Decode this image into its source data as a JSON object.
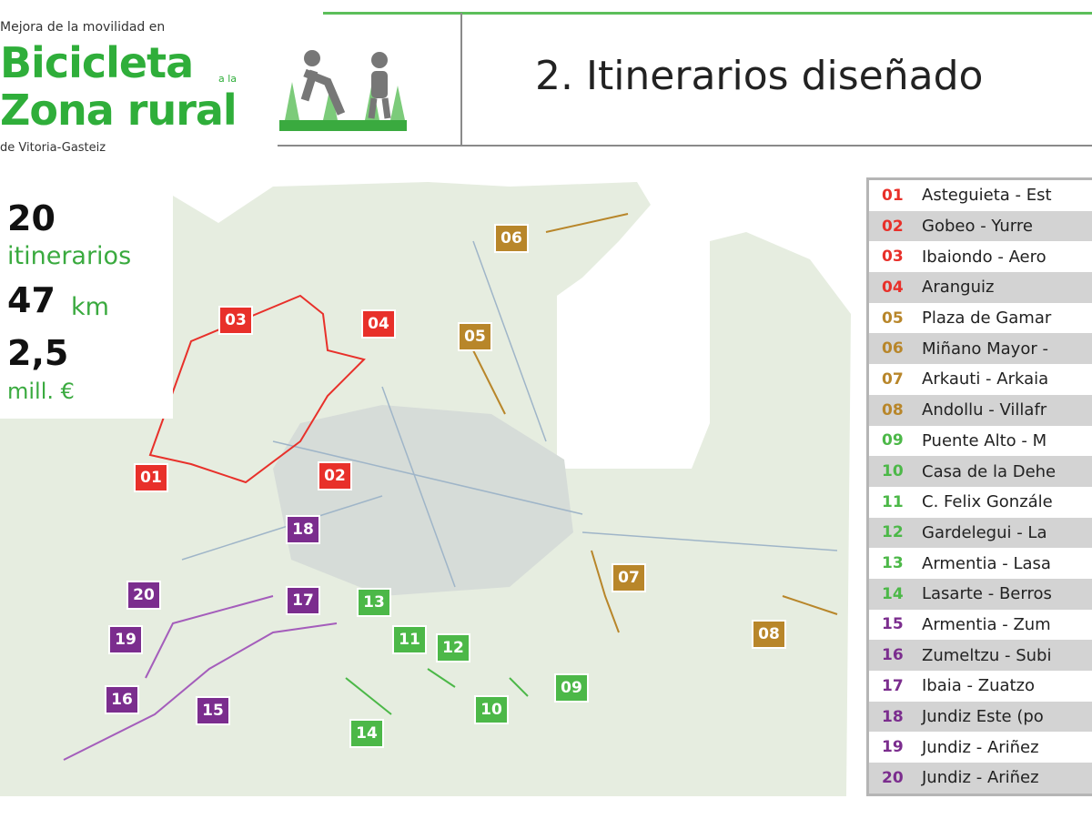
{
  "header": {
    "subtitle_top": "Mejora de la movilidad en",
    "brand_line1": "Bicicleta",
    "brand_connector": "a la",
    "brand_line2": "Zona rural",
    "subtitle_bottom": "de Vitoria-Gasteiz",
    "title": "2. Itinerarios diseñado",
    "logo_icon": "cyclist-pedestrian-icon"
  },
  "stats": {
    "itineraries_value": "20",
    "itineraries_label": "itinerarios",
    "km_value": "47",
    "km_label": "km",
    "budget_value": "2,5",
    "budget_label": "mill. €"
  },
  "colors": {
    "red": "#e8302a",
    "ochre": "#b8862a",
    "green": "#4cb848",
    "purple": "#7b2d8e",
    "map": "#e6ede0"
  },
  "routes": [
    {
      "num": "01",
      "name": "Asteguieta - Est",
      "color": "red"
    },
    {
      "num": "02",
      "name": "Gobeo - Yurre",
      "color": "red"
    },
    {
      "num": "03",
      "name": "Ibaiondo - Aero",
      "color": "red"
    },
    {
      "num": "04",
      "name": "Aranguiz",
      "color": "red"
    },
    {
      "num": "05",
      "name": "Plaza de Gamar",
      "color": "ochre"
    },
    {
      "num": "06",
      "name": "Miñano Mayor -",
      "color": "ochre"
    },
    {
      "num": "07",
      "name": "Arkauti - Arkaia",
      "color": "ochre"
    },
    {
      "num": "08",
      "name": "Andollu - Villafr",
      "color": "ochre"
    },
    {
      "num": "09",
      "name": "Puente Alto - M",
      "color": "green"
    },
    {
      "num": "10",
      "name": "Casa de la Dehe",
      "color": "green"
    },
    {
      "num": "11",
      "name": "C. Felix Gonzále",
      "color": "green"
    },
    {
      "num": "12",
      "name": "Gardelegui - La",
      "color": "green"
    },
    {
      "num": "13",
      "name": "Armentia - Lasa",
      "color": "green"
    },
    {
      "num": "14",
      "name": "Lasarte - Berros",
      "color": "green"
    },
    {
      "num": "15",
      "name": "Armentia - Zum",
      "color": "purple"
    },
    {
      "num": "16",
      "name": "Zumeltzu - Subi",
      "color": "purple"
    },
    {
      "num": "17",
      "name": "Ibaia - Zuatzo",
      "color": "purple"
    },
    {
      "num": "18",
      "name": "Jundiz Este (po",
      "color": "purple"
    },
    {
      "num": "19",
      "name": "Jundiz - Ariñez",
      "color": "purple"
    },
    {
      "num": "20",
      "name": "Jundiz - Ariñez",
      "color": "purple"
    }
  ]
}
